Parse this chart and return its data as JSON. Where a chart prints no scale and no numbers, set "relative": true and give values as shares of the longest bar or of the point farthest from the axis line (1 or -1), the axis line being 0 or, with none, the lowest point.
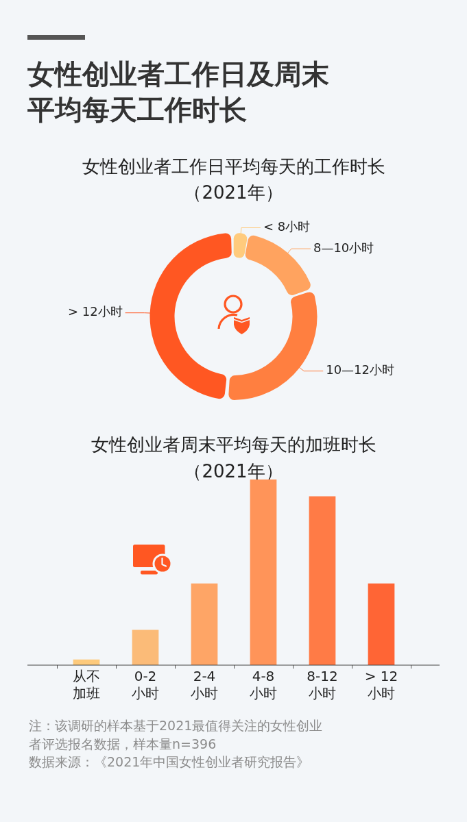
{
  "chart_data": [
    {
      "type": "donut",
      "title": "女性创业者工作日平均每天的工作时长",
      "subtitle": "（2021年）",
      "categories": [
        "< 8小时",
        "8—10小时",
        "10—12小时",
        "> 12小时"
      ],
      "values": [
        2.8,
        16.9,
        31.6,
        48.7
      ],
      "colors": [
        "#ffcb7d",
        "#ffa35f",
        "#ff7f40",
        "#ff5722"
      ],
      "annotations": [
        "女性创业者工作日及周末平均每天工作时长"
      ]
    },
    {
      "type": "bar",
      "title": "女性创业者周末平均每天的加班时长",
      "subtitle": "（2021年）",
      "categories": [
        "从不加班",
        "0-2小时",
        "2-4小时",
        "4-8小时",
        "8-12小时",
        "> 12小时"
      ],
      "values": [
        0.03,
        0.19,
        0.44,
        1,
        0.91,
        0.44
      ],
      "colors": [
        "#fdca7c",
        "#fbbb78",
        "#fea566",
        "#ff9459",
        "#ff7b46",
        "#ff6535"
      ],
      "relative": true,
      "annotations": [
        "注：该调研的样本基于2021最值得关注的女性创业者评选报名数据，样本量n=396",
        "数据来源：《2021年中国女性创业者研究报告》"
      ]
    }
  ]
}
